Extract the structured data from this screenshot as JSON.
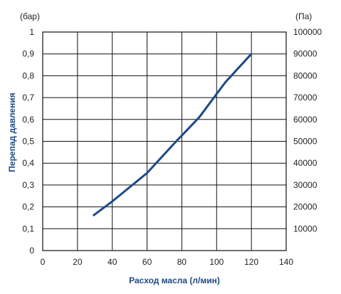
{
  "chart_data": {
    "type": "line",
    "xlabel": "Расход масла (л/мин)",
    "ylabel": "Перепад давления",
    "y_unit_left": "(бар)",
    "y_unit_right": "(Па)",
    "xlim": [
      0,
      140
    ],
    "ylim": [
      0,
      1
    ],
    "y2lim": [
      0,
      100000
    ],
    "x_ticks": [
      "0",
      "20",
      "40",
      "60",
      "80",
      "100",
      "120",
      "140"
    ],
    "y_ticks": [
      "0",
      "0,1",
      "0,2",
      "0,3",
      "0,4",
      "0,5",
      "0,6",
      "0,7",
      "0,8",
      "0,9",
      "1"
    ],
    "y2_ticks": [
      "",
      "10000",
      "20000",
      "30000",
      "40000",
      "50000",
      "60000",
      "70000",
      "80000",
      "90000",
      "100000"
    ],
    "grid": true,
    "line_color": "#1b4a86",
    "series": [
      {
        "x": [
          29,
          40,
          50,
          60,
          75,
          90,
          105,
          120
        ],
        "y": [
          0.16,
          0.225,
          0.29,
          0.355,
          0.485,
          0.61,
          0.77,
          0.9
        ]
      }
    ]
  }
}
